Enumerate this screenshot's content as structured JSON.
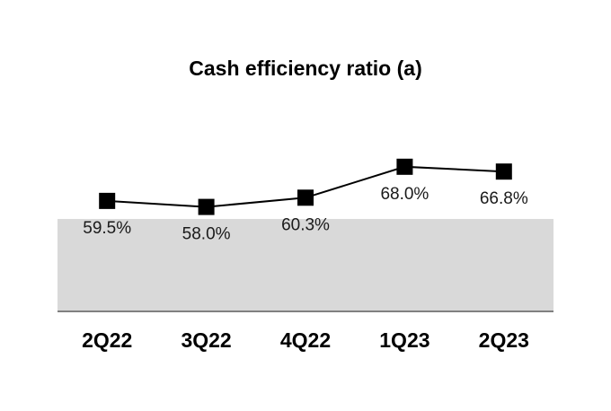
{
  "chart_data": {
    "type": "line",
    "title": "Cash efficiency ratio (a)",
    "categories": [
      "2Q22",
      "3Q22",
      "4Q22",
      "1Q23",
      "2Q23"
    ],
    "series": [
      {
        "values": [
          59.5,
          58.0,
          60.3,
          68.0,
          66.8
        ]
      }
    ],
    "data_labels": [
      "59.5%",
      "58.0%",
      "60.3%",
      "68.0%",
      "66.8%"
    ],
    "xlabel": "",
    "ylabel": "",
    "ylim": [
      32,
      76
    ],
    "grid": false,
    "legend": "none",
    "shaded_band": {
      "from": 32,
      "to": 55,
      "color": "#d9d9d9"
    },
    "colors": {
      "line": "#000000",
      "marker": "#000000",
      "axis": "#808080",
      "band": "#d9d9d9"
    }
  }
}
